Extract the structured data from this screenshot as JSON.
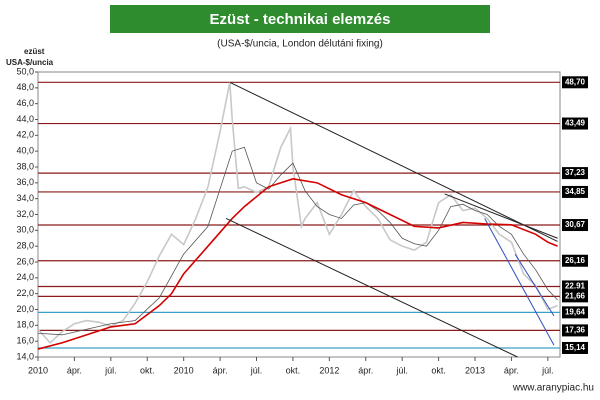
{
  "chart_data": {
    "type": "line",
    "title": "Ezüst - technikai elemzés",
    "subtitle": "(USA-$/uncia, London délutáni fixing)",
    "y_label": [
      "ezüst",
      "USA-$/uncia"
    ],
    "source": "www.aranypiac.hu",
    "xlim": [
      0,
      43
    ],
    "ylim": [
      14,
      50
    ],
    "yticks": [
      {
        "value": 14,
        "label": "14,0"
      },
      {
        "value": 16,
        "label": "16,0"
      },
      {
        "value": 18,
        "label": "18,0"
      },
      {
        "value": 20,
        "label": "20,0"
      },
      {
        "value": 22,
        "label": "22,0"
      },
      {
        "value": 24,
        "label": "24,0"
      },
      {
        "value": 26,
        "label": "26,0"
      },
      {
        "value": 28,
        "label": "28,0"
      },
      {
        "value": 30,
        "label": "30,0"
      },
      {
        "value": 32,
        "label": "32,0"
      },
      {
        "value": 34,
        "label": "34,0"
      },
      {
        "value": 36,
        "label": "36,0"
      },
      {
        "value": 38,
        "label": "38,0"
      },
      {
        "value": 40,
        "label": "40,0"
      },
      {
        "value": 42,
        "label": "42,0"
      },
      {
        "value": 44,
        "label": "44,0"
      },
      {
        "value": 46,
        "label": "46,0"
      },
      {
        "value": 48,
        "label": "48,0"
      },
      {
        "value": 50,
        "label": "50,0"
      }
    ],
    "xticks": [
      {
        "value": 0,
        "label": "2010"
      },
      {
        "value": 3,
        "label": "ápr."
      },
      {
        "value": 6,
        "label": "júl."
      },
      {
        "value": 9,
        "label": "okt."
      },
      {
        "value": 12,
        "label": "2010"
      },
      {
        "value": 15,
        "label": "ápr."
      },
      {
        "value": 18,
        "label": "júl."
      },
      {
        "value": 21,
        "label": "okt."
      },
      {
        "value": 24,
        "label": "2012"
      },
      {
        "value": 27,
        "label": "ápr."
      },
      {
        "value": 30,
        "label": "júl."
      },
      {
        "value": 33,
        "label": "okt."
      },
      {
        "value": 36,
        "label": "2013"
      },
      {
        "value": 39,
        "label": "ápr."
      },
      {
        "value": 42,
        "label": "júl."
      }
    ],
    "series": [
      {
        "color": "#c8c8c8",
        "width": 1.6,
        "x": [
          0,
          1,
          2,
          3,
          4,
          5,
          6,
          7,
          8,
          9,
          10,
          11,
          12,
          13,
          14,
          15,
          15.8,
          16,
          16.5,
          17,
          18,
          19,
          20,
          20.8,
          21,
          21.7,
          22,
          23,
          24,
          25,
          26,
          27,
          28,
          29,
          30,
          31,
          32,
          33,
          34,
          35,
          36,
          37,
          38,
          39,
          40,
          41,
          42,
          42.8
        ],
        "values": [
          17.5,
          15.8,
          17.2,
          18.2,
          18.6,
          18.4,
          17.9,
          18.6,
          20.8,
          23.5,
          26.8,
          29.5,
          28.2,
          31.5,
          35.5,
          42.5,
          48.7,
          44,
          35.3,
          35.5,
          34.8,
          35.5,
          40.5,
          42.9,
          38,
          30.5,
          31.5,
          33.5,
          29.5,
          32,
          35,
          33,
          31.5,
          28.8,
          28,
          27.5,
          28.5,
          33.5,
          34.5,
          32.5,
          32.8,
          31.5,
          29.5,
          28.5,
          24.5,
          23,
          20,
          20.5
        ]
      },
      {
        "color": "#555555",
        "width": 0.8,
        "x": [
          0,
          2,
          4,
          6,
          8,
          10,
          12,
          14,
          16,
          17,
          18,
          19,
          20,
          21,
          22,
          23,
          24,
          25,
          26,
          27,
          28,
          29,
          30,
          31,
          32,
          33,
          34,
          35,
          36,
          37,
          38,
          39,
          40,
          41,
          42,
          42.8
        ],
        "values": [
          17,
          16.8,
          17.5,
          18.2,
          18.6,
          21.5,
          27,
          30.5,
          40,
          40.5,
          36,
          35.2,
          37,
          38.5,
          35,
          33,
          32,
          31.5,
          33.2,
          33.5,
          32.5,
          31,
          29,
          28.3,
          28,
          30,
          33,
          33.3,
          32.5,
          32,
          30.5,
          29.5,
          27,
          25,
          22.5,
          21.2
        ]
      },
      {
        "color": "#d40000",
        "width": 1.6,
        "x": [
          0,
          2,
          4,
          6,
          8,
          10,
          11,
          12,
          14,
          16,
          17,
          19,
          21,
          23,
          25,
          27,
          29,
          31,
          33,
          35,
          37,
          39,
          41,
          42,
          42.8
        ],
        "values": [
          15,
          15.8,
          16.8,
          17.8,
          18.2,
          20.5,
          22,
          24.5,
          28,
          31.5,
          33,
          35.5,
          36.5,
          36,
          34.5,
          33.5,
          32,
          30.5,
          30.3,
          31,
          30.8,
          30.7,
          29.5,
          28.5,
          28
        ]
      }
    ],
    "trend_lines": [
      {
        "color": "#222222",
        "x": [
          15.8,
          42.8
        ],
        "y": [
          48.7,
          28.6
        ]
      },
      {
        "color": "#222222",
        "x": [
          15.5,
          39.5
        ],
        "y": [
          31.5,
          14
        ]
      },
      {
        "color": "#222222",
        "x": [
          33.5,
          42.8
        ],
        "y": [
          34.6,
          29
        ]
      },
      {
        "color": "#3050c0",
        "x": [
          36.8,
          42.5
        ],
        "y": [
          31.5,
          15.5
        ]
      },
      {
        "color": "#3050c0",
        "x": [
          39.3,
          42.5
        ],
        "y": [
          27,
          19.2
        ]
      }
    ],
    "levels": [
      {
        "value": 48.7,
        "label": "48,70",
        "color": "#8b1a1a"
      },
      {
        "value": 43.49,
        "label": "43,49",
        "color": "#8b1a1a"
      },
      {
        "value": 37.23,
        "label": "37,23",
        "color": "#8b1a1a"
      },
      {
        "value": 34.85,
        "label": "34,85",
        "color": "#8b1a1a"
      },
      {
        "value": 30.67,
        "label": "30,67",
        "color": "#8b1a1a"
      },
      {
        "value": 26.16,
        "label": "26,16",
        "color": "#8b1a1a"
      },
      {
        "value": 22.91,
        "label": "22.91",
        "color": "#8b1a1a"
      },
      {
        "value": 21.66,
        "label": "21,66",
        "color": "#8b1a1a"
      },
      {
        "value": 19.64,
        "label": "19,64",
        "color": "#3aa0c8"
      },
      {
        "value": 17.36,
        "label": "17,36",
        "color": "#8b1a1a"
      },
      {
        "value": 15.14,
        "label": "15,14",
        "color": "#3aa0c8"
      }
    ]
  }
}
